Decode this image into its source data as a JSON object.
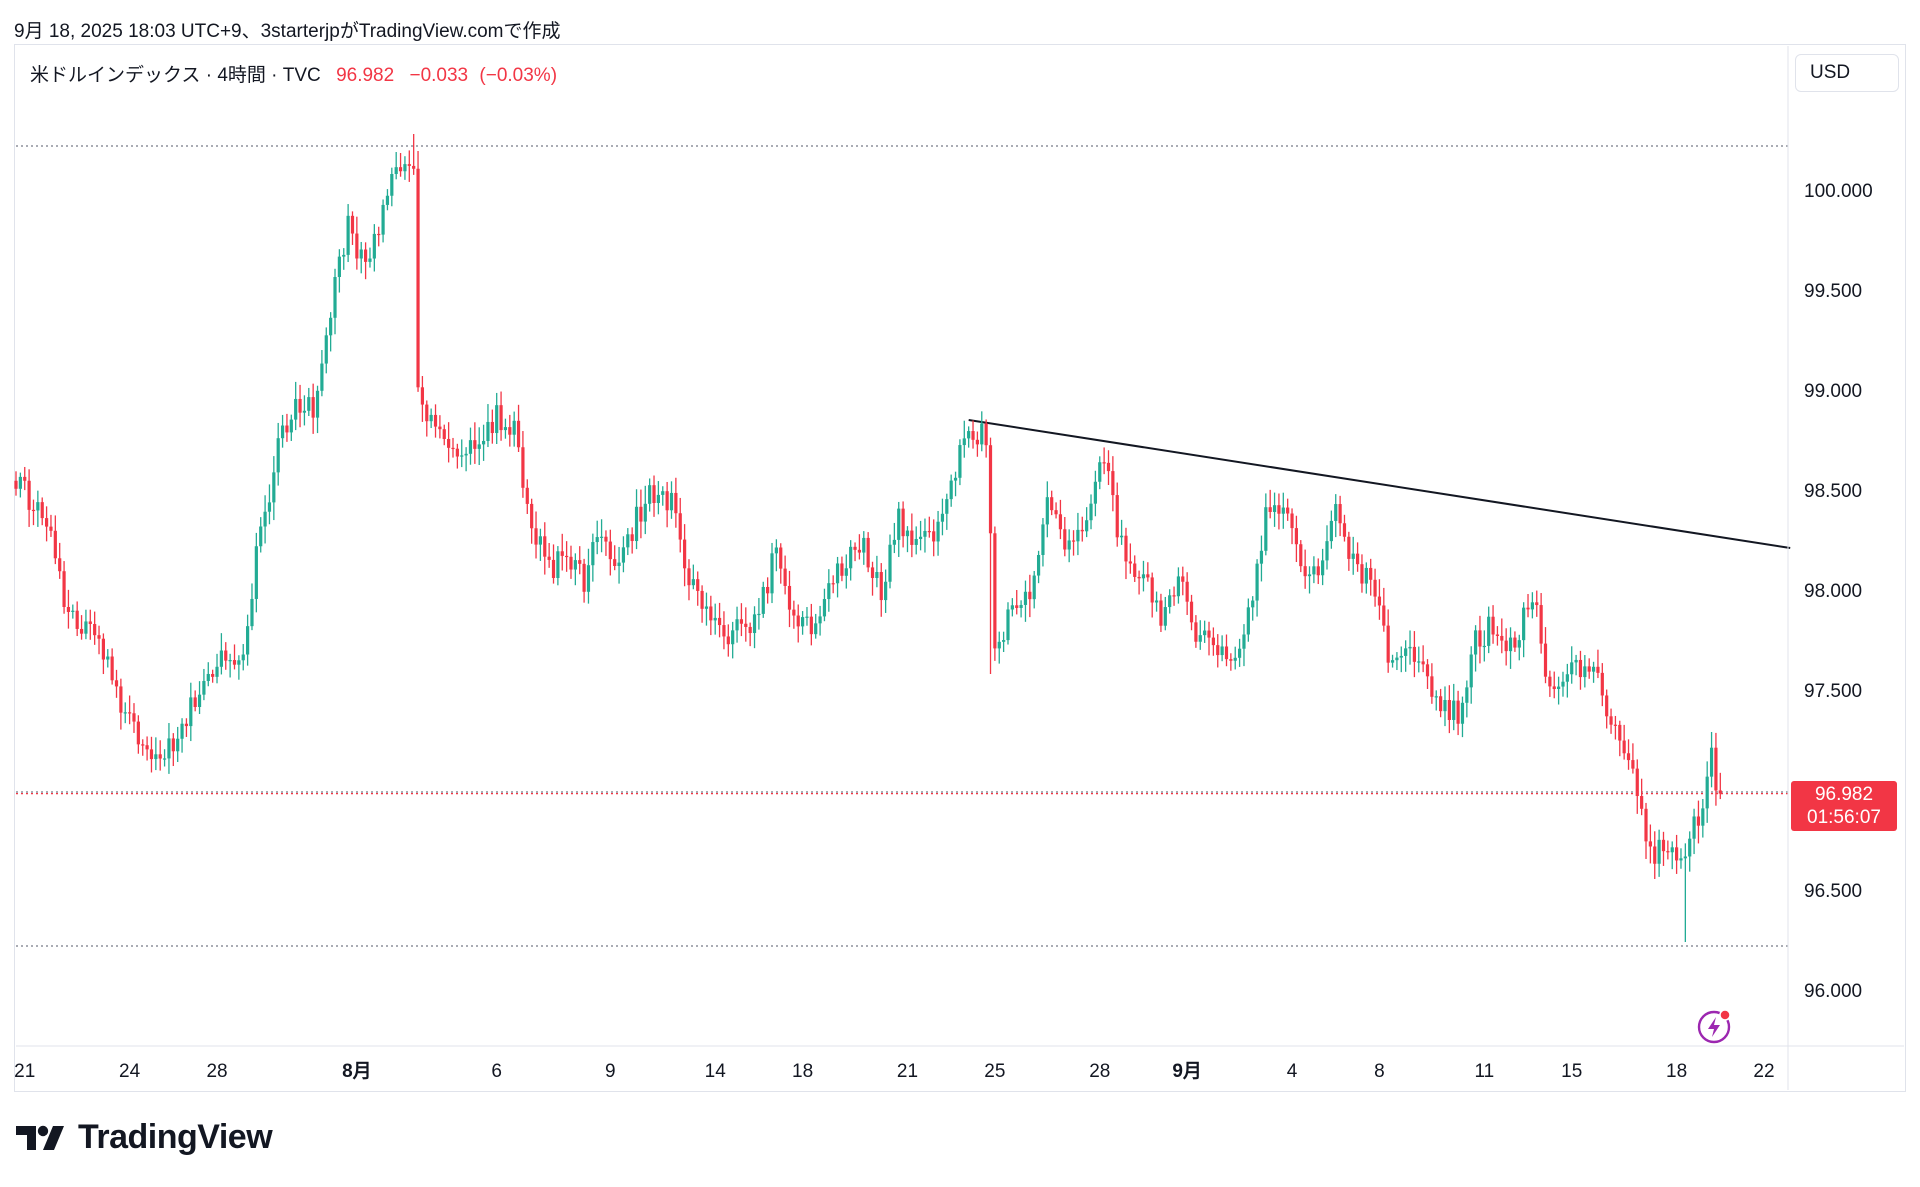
{
  "caption": "9月 18, 2025 18:03 UTC+9、3starterjpがTradingView.comで作成",
  "legend": {
    "symbol": "米ドルインデックス · 4時間 · TVC",
    "last": "96.982",
    "change": "−0.033",
    "change_pct": "(−0.03%)"
  },
  "currency": "USD",
  "price_tag": {
    "price": "96.982",
    "countdown": "01:56:07"
  },
  "brand": "TradingView",
  "colors": {
    "up": "#22ab94",
    "down": "#f23645",
    "grid_line": "#787b86",
    "trend": "#131722",
    "axis_text": "#131722"
  },
  "icons": {
    "flash": "flash-icon",
    "logo": "tradingview-logo-icon"
  },
  "chart_data": {
    "type": "candlestick",
    "title": "米ドルインデックス · 4時間 · TVC",
    "y_ticks": [
      "100.000",
      "99.500",
      "99.000",
      "98.500",
      "98.000",
      "97.500",
      "96.500",
      "96.000"
    ],
    "y_tick_values": [
      100.0,
      99.5,
      99.0,
      98.5,
      98.0,
      97.5,
      96.5,
      96.0
    ],
    "ylim": [
      95.7,
      100.45
    ],
    "x_ticks": [
      {
        "label": "21",
        "i": 2,
        "bold": false
      },
      {
        "label": "24",
        "i": 26,
        "bold": false
      },
      {
        "label": "28",
        "i": 46,
        "bold": false
      },
      {
        "label": "8月",
        "i": 78,
        "bold": true
      },
      {
        "label": "6",
        "i": 110,
        "bold": false
      },
      {
        "label": "9",
        "i": 136,
        "bold": false
      },
      {
        "label": "14",
        "i": 160,
        "bold": false
      },
      {
        "label": "18",
        "i": 180,
        "bold": false
      },
      {
        "label": "21",
        "i": 204,
        "bold": false
      },
      {
        "label": "25",
        "i": 224,
        "bold": false
      },
      {
        "label": "28",
        "i": 248,
        "bold": false
      },
      {
        "label": "9月",
        "i": 268,
        "bold": true
      },
      {
        "label": "4",
        "i": 292,
        "bold": false
      },
      {
        "label": "8",
        "i": 312,
        "bold": false
      },
      {
        "label": "11",
        "i": 336,
        "bold": false
      },
      {
        "label": "15",
        "i": 356,
        "bold": false
      },
      {
        "label": "18",
        "i": 380,
        "bold": false
      },
      {
        "label": "22",
        "i": 400,
        "bold": false
      }
    ],
    "n_slots": 406,
    "horizontal_lines": [
      {
        "value": 100.22,
        "style": "dotted",
        "color": "#787b86"
      },
      {
        "value": 96.99,
        "style": "dotted",
        "color": "#787b86"
      },
      {
        "value": 96.22,
        "style": "dotted",
        "color": "#787b86"
      },
      {
        "value": 96.982,
        "style": "dotted",
        "color": "#f23645"
      }
    ],
    "trendline": {
      "from": {
        "i": 218,
        "value": 98.85
      },
      "to": {
        "i": 406,
        "value": 98.21
      }
    },
    "anchors": [
      [
        0,
        98.52
      ],
      [
        8,
        98.35
      ],
      [
        12,
        97.85
      ],
      [
        20,
        97.72
      ],
      [
        24,
        97.4
      ],
      [
        31,
        97.15
      ],
      [
        36,
        97.22
      ],
      [
        42,
        97.5
      ],
      [
        48,
        97.66
      ],
      [
        52,
        97.72
      ],
      [
        56,
        98.3
      ],
      [
        60,
        98.7
      ],
      [
        64,
        98.95
      ],
      [
        68,
        98.9
      ],
      [
        72,
        99.4
      ],
      [
        76,
        99.85
      ],
      [
        80,
        99.6
      ],
      [
        84,
        99.9
      ],
      [
        88,
        100.15
      ],
      [
        91,
        100.1
      ],
      [
        92,
        98.95
      ],
      [
        94,
        98.85
      ],
      [
        98,
        98.78
      ],
      [
        102,
        98.7
      ],
      [
        106,
        98.7
      ],
      [
        110,
        98.88
      ],
      [
        114,
        98.8
      ],
      [
        118,
        98.35
      ],
      [
        122,
        98.1
      ],
      [
        126,
        98.15
      ],
      [
        130,
        98.05
      ],
      [
        134,
        98.3
      ],
      [
        138,
        98.1
      ],
      [
        142,
        98.35
      ],
      [
        146,
        98.5
      ],
      [
        150,
        98.45
      ],
      [
        154,
        98.05
      ],
      [
        158,
        97.9
      ],
      [
        162,
        97.75
      ],
      [
        166,
        97.8
      ],
      [
        170,
        97.85
      ],
      [
        174,
        98.25
      ],
      [
        178,
        97.85
      ],
      [
        182,
        97.8
      ],
      [
        186,
        98.05
      ],
      [
        190,
        98.15
      ],
      [
        194,
        98.2
      ],
      [
        198,
        98.0
      ],
      [
        202,
        98.35
      ],
      [
        206,
        98.25
      ],
      [
        210,
        98.3
      ],
      [
        214,
        98.55
      ],
      [
        218,
        98.78
      ],
      [
        222,
        98.78
      ],
      [
        224,
        97.7
      ],
      [
        228,
        97.9
      ],
      [
        232,
        97.95
      ],
      [
        236,
        98.45
      ],
      [
        240,
        98.25
      ],
      [
        244,
        98.3
      ],
      [
        248,
        98.65
      ],
      [
        250,
        98.55
      ],
      [
        254,
        98.1
      ],
      [
        258,
        98.05
      ],
      [
        262,
        97.85
      ],
      [
        266,
        98.05
      ],
      [
        270,
        97.8
      ],
      [
        274,
        97.7
      ],
      [
        278,
        97.65
      ],
      [
        282,
        97.85
      ],
      [
        286,
        98.35
      ],
      [
        290,
        98.45
      ],
      [
        294,
        98.1
      ],
      [
        298,
        98.1
      ],
      [
        302,
        98.4
      ],
      [
        306,
        98.15
      ],
      [
        310,
        98.05
      ],
      [
        314,
        97.7
      ],
      [
        318,
        97.75
      ],
      [
        322,
        97.6
      ],
      [
        326,
        97.45
      ],
      [
        330,
        97.38
      ],
      [
        334,
        97.75
      ],
      [
        338,
        97.82
      ],
      [
        342,
        97.7
      ],
      [
        346,
        97.9
      ],
      [
        348,
        97.95
      ],
      [
        350,
        97.55
      ],
      [
        354,
        97.55
      ],
      [
        358,
        97.62
      ],
      [
        362,
        97.55
      ],
      [
        366,
        97.3
      ],
      [
        370,
        97.15
      ],
      [
        374,
        96.65
      ],
      [
        378,
        96.75
      ],
      [
        382,
        96.65
      ],
      [
        386,
        96.95
      ],
      [
        388,
        97.15
      ],
      [
        390,
        96.98
      ]
    ],
    "spikes": [
      {
        "i": 91,
        "high": 100.28
      },
      {
        "i": 223,
        "low": 97.58
      },
      {
        "i": 382,
        "low": 96.24
      },
      {
        "i": 388,
        "high": 97.29
      }
    ],
    "last_price": 96.982
  }
}
